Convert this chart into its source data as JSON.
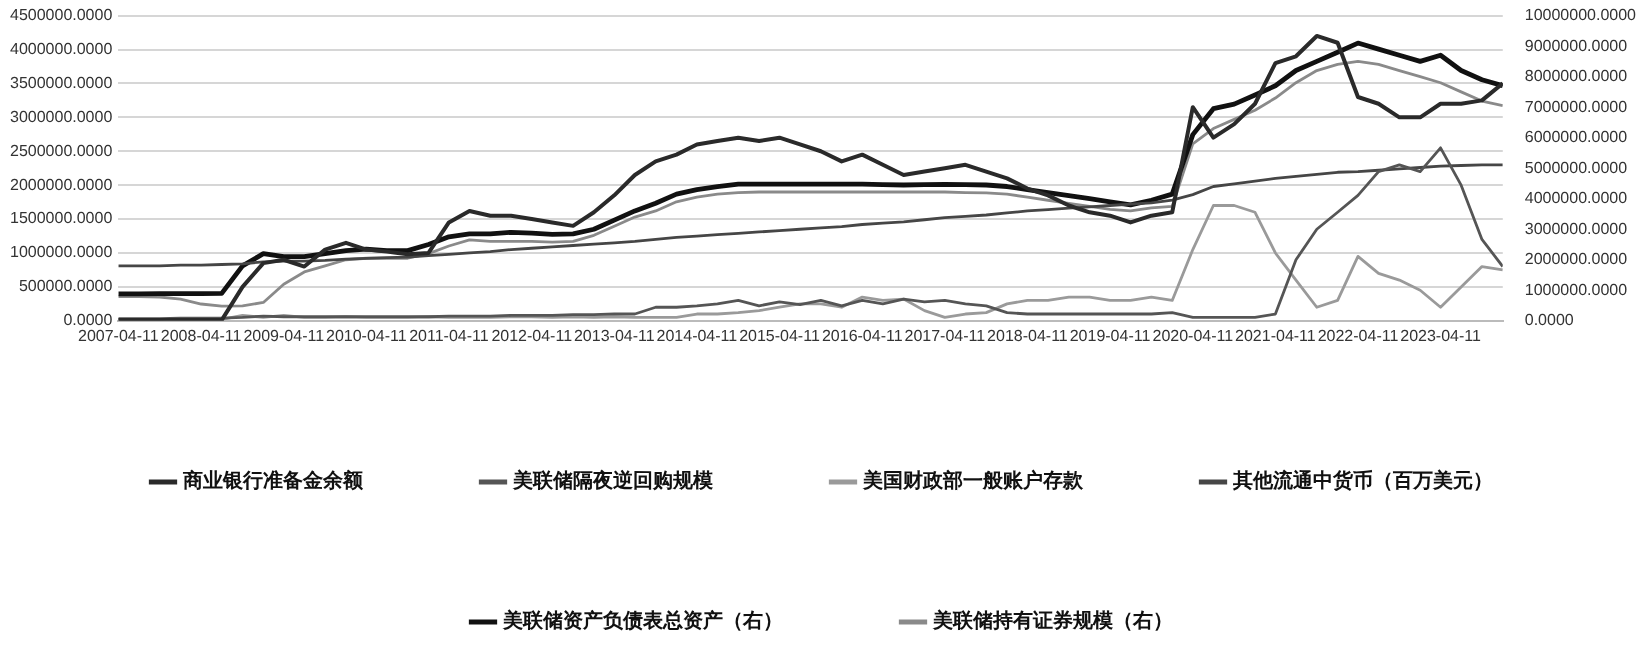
{
  "chart_data": {
    "type": "line",
    "x": [
      "2007-04-11",
      "2007-07-11",
      "2007-10-11",
      "2008-01-11",
      "2008-04-11",
      "2008-07-11",
      "2008-10-11",
      "2009-01-11",
      "2009-04-11",
      "2009-07-11",
      "2009-10-11",
      "2010-01-11",
      "2010-04-11",
      "2010-07-11",
      "2010-10-11",
      "2011-01-11",
      "2011-04-11",
      "2011-07-11",
      "2011-10-11",
      "2012-01-11",
      "2012-04-11",
      "2012-07-11",
      "2012-10-11",
      "2013-01-11",
      "2013-04-11",
      "2013-07-11",
      "2013-10-11",
      "2014-01-11",
      "2014-04-11",
      "2014-07-11",
      "2014-10-11",
      "2015-01-11",
      "2015-04-11",
      "2015-07-11",
      "2015-10-11",
      "2016-01-11",
      "2016-04-11",
      "2016-07-11",
      "2016-10-11",
      "2017-01-11",
      "2017-04-11",
      "2017-07-11",
      "2017-10-11",
      "2018-01-11",
      "2018-04-11",
      "2018-07-11",
      "2018-10-11",
      "2019-01-11",
      "2019-04-11",
      "2019-07-11",
      "2019-10-11",
      "2020-01-11",
      "2020-04-11",
      "2020-07-11",
      "2020-10-11",
      "2021-01-11",
      "2021-04-11",
      "2021-07-11",
      "2021-10-11",
      "2022-01-11",
      "2022-04-11",
      "2022-07-11",
      "2022-10-11",
      "2023-01-11",
      "2023-04-11",
      "2023-07-11",
      "2023-10-11",
      "2024-01-11"
    ],
    "series": [
      {
        "name": "商业银行准备金余额",
        "color": "#2a2a2a",
        "values": [
          10000,
          10000,
          10000,
          10000,
          10000,
          10000,
          500000,
          850000,
          900000,
          800000,
          1050000,
          1150000,
          1050000,
          1020000,
          980000,
          1000000,
          1450000,
          1620000,
          1550000,
          1550000,
          1500000,
          1450000,
          1400000,
          1600000,
          1850000,
          2150000,
          2350000,
          2450000,
          2600000,
          2650000,
          2700000,
          2650000,
          2700000,
          2600000,
          2500000,
          2350000,
          2450000,
          2300000,
          2150000,
          2200000,
          2250000,
          2300000,
          2200000,
          2100000,
          1950000,
          1850000,
          1700000,
          1600000,
          1550000,
          1450000,
          1550000,
          1600000,
          3150000,
          2700000,
          2900000,
          3200000,
          3800000,
          3900000,
          4200000,
          4100000,
          3300000,
          3200000,
          3000000,
          3000000,
          3200000,
          3200000,
          3250000,
          3500000
        ]
      },
      {
        "name": "美联储隔夜逆回购规模",
        "color": "#555555",
        "values": [
          30000,
          30000,
          30000,
          40000,
          40000,
          40000,
          50000,
          70000,
          60000,
          60000,
          60000,
          60000,
          60000,
          60000,
          60000,
          60000,
          70000,
          70000,
          70000,
          80000,
          80000,
          80000,
          90000,
          90000,
          100000,
          100000,
          200000,
          200000,
          220000,
          250000,
          300000,
          220000,
          280000,
          240000,
          300000,
          220000,
          300000,
          250000,
          320000,
          280000,
          300000,
          250000,
          220000,
          120000,
          100000,
          100000,
          100000,
          100000,
          100000,
          100000,
          100000,
          120000,
          50000,
          50000,
          50000,
          50000,
          100000,
          900000,
          1350000,
          1600000,
          1850000,
          2200000,
          2300000,
          2200000,
          2550000,
          2000000,
          1200000,
          800000
        ]
      },
      {
        "name": "美国财政部一般账户存款",
        "color": "#9a9a9a",
        "values": [
          20000,
          20000,
          20000,
          20000,
          20000,
          20000,
          80000,
          50000,
          80000,
          50000,
          50000,
          60000,
          50000,
          50000,
          50000,
          60000,
          50000,
          50000,
          50000,
          60000,
          60000,
          50000,
          60000,
          50000,
          60000,
          50000,
          50000,
          50000,
          100000,
          100000,
          120000,
          150000,
          200000,
          250000,
          250000,
          200000,
          350000,
          300000,
          320000,
          150000,
          50000,
          100000,
          120000,
          250000,
          300000,
          300000,
          350000,
          350000,
          300000,
          300000,
          350000,
          300000,
          1050000,
          1700000,
          1700000,
          1600000,
          1000000,
          600000,
          200000,
          300000,
          950000,
          700000,
          600000,
          450000,
          200000,
          500000,
          800000,
          750000
        ]
      },
      {
        "name": "其他流通中货币（百万美元）",
        "color": "#464646",
        "values": [
          810000,
          810000,
          810000,
          820000,
          820000,
          830000,
          840000,
          870000,
          880000,
          880000,
          890000,
          910000,
          920000,
          930000,
          940000,
          960000,
          980000,
          1000000,
          1020000,
          1050000,
          1070000,
          1090000,
          1110000,
          1130000,
          1150000,
          1170000,
          1200000,
          1230000,
          1250000,
          1270000,
          1290000,
          1310000,
          1330000,
          1350000,
          1370000,
          1390000,
          1420000,
          1440000,
          1460000,
          1490000,
          1520000,
          1540000,
          1560000,
          1590000,
          1620000,
          1640000,
          1660000,
          1680000,
          1700000,
          1720000,
          1740000,
          1780000,
          1860000,
          1980000,
          2020000,
          2060000,
          2100000,
          2130000,
          2160000,
          2190000,
          2200000,
          2220000,
          2240000,
          2260000,
          2280000,
          2290000,
          2300000,
          2300000
        ]
      },
      {
        "name": "美联储资产负债表总资产（右）",
        "color": "#111111",
        "axis": "y2",
        "values": [
          880000,
          880000,
          890000,
          890000,
          890000,
          900000,
          1800000,
          2200000,
          2100000,
          2100000,
          2200000,
          2300000,
          2350000,
          2300000,
          2300000,
          2500000,
          2750000,
          2850000,
          2850000,
          2900000,
          2870000,
          2830000,
          2850000,
          3000000,
          3300000,
          3600000,
          3850000,
          4150000,
          4300000,
          4400000,
          4480000,
          4480000,
          4480000,
          4480000,
          4480000,
          4480000,
          4480000,
          4460000,
          4450000,
          4460000,
          4470000,
          4460000,
          4450000,
          4400000,
          4300000,
          4200000,
          4100000,
          4000000,
          3900000,
          3800000,
          3950000,
          4150000,
          6100000,
          6950000,
          7100000,
          7400000,
          7700000,
          8200000,
          8500000,
          8800000,
          9100000,
          8900000,
          8700000,
          8500000,
          8700000,
          8200000,
          7900000,
          7700000
        ]
      },
      {
        "name": "美联储持有证券规模（右）",
        "color": "#8a8a8a",
        "axis": "y2",
        "values": [
          790000,
          790000,
          780000,
          710000,
          550000,
          480000,
          490000,
          600000,
          1200000,
          1600000,
          1800000,
          2000000,
          2050000,
          2050000,
          2050000,
          2200000,
          2450000,
          2650000,
          2600000,
          2600000,
          2600000,
          2580000,
          2600000,
          2800000,
          3100000,
          3400000,
          3600000,
          3900000,
          4050000,
          4150000,
          4200000,
          4220000,
          4220000,
          4220000,
          4220000,
          4220000,
          4220000,
          4220000,
          4220000,
          4220000,
          4220000,
          4200000,
          4190000,
          4150000,
          4050000,
          3950000,
          3850000,
          3750000,
          3650000,
          3600000,
          3700000,
          3750000,
          5800000,
          6300000,
          6600000,
          6900000,
          7300000,
          7800000,
          8200000,
          8400000,
          8500000,
          8400000,
          8200000,
          8000000,
          7800000,
          7500000,
          7200000,
          7050000
        ]
      }
    ],
    "xlim": [
      "2007-04-11",
      "2024-01-11"
    ],
    "xticks": [
      "2007-04-11",
      "2008-04-11",
      "2009-04-11",
      "2010-04-11",
      "2011-04-11",
      "2012-04-11",
      "2013-04-11",
      "2014-04-11",
      "2015-04-11",
      "2016-04-11",
      "2017-04-11",
      "2018-04-11",
      "2019-04-11",
      "2020-04-11",
      "2021-04-11",
      "2022-04-11",
      "2023-04-11"
    ],
    "ylim": [
      0,
      4500000
    ],
    "yticks": [
      {
        "value": 0,
        "label": "0.0000"
      },
      {
        "value": 500000,
        "label": "500000.0000"
      },
      {
        "value": 1000000,
        "label": "1000000.0000"
      },
      {
        "value": 1500000,
        "label": "1500000.0000"
      },
      {
        "value": 2000000,
        "label": "2000000.0000"
      },
      {
        "value": 2500000,
        "label": "2500000.0000"
      },
      {
        "value": 3000000,
        "label": "3000000.0000"
      },
      {
        "value": 3500000,
        "label": "3500000.0000"
      },
      {
        "value": 4000000,
        "label": "4000000.0000"
      },
      {
        "value": 4500000,
        "label": "4500000.0000"
      }
    ],
    "y2lim": [
      0,
      10000000
    ],
    "y2ticks": [
      {
        "value": 0,
        "label": "0.0000"
      },
      {
        "value": 1000000,
        "label": "1000000.0000"
      },
      {
        "value": 2000000,
        "label": "2000000.0000"
      },
      {
        "value": 3000000,
        "label": "3000000.0000"
      },
      {
        "value": 4000000,
        "label": "4000000.0000"
      },
      {
        "value": 5000000,
        "label": "5000000.0000"
      },
      {
        "value": 6000000,
        "label": "6000000.0000"
      },
      {
        "value": 7000000,
        "label": "7000000.0000"
      },
      {
        "value": 8000000,
        "label": "8000000.0000"
      },
      {
        "value": 9000000,
        "label": "9000000.0000"
      },
      {
        "value": 10000000,
        "label": "10000000.0000"
      }
    ],
    "grid": "y",
    "legend": "bottom",
    "marker": "none",
    "line_style": "solid"
  }
}
